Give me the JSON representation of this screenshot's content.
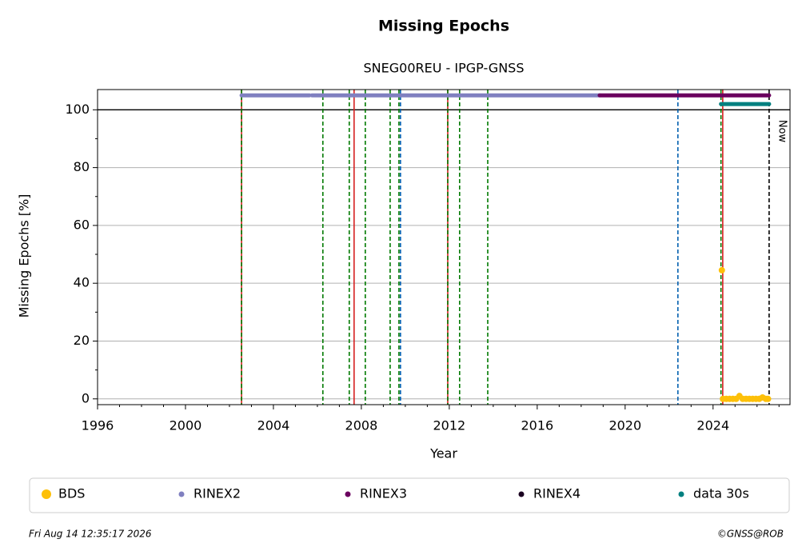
{
  "chart_data": {
    "type": "timeline",
    "title": "Missing Epochs",
    "subtitle": "SNEG00REU - IPGP-GNSS",
    "xlabel": "Year",
    "ylabel": "Missing Epochs [%]",
    "xlim": [
      1996,
      2027.5
    ],
    "ylim": [
      -2,
      107
    ],
    "xticks": [
      1996,
      2000,
      2004,
      2008,
      2012,
      2016,
      2020,
      2024
    ],
    "xminorticks": [
      1997,
      1998,
      1999,
      2001,
      2002,
      2003,
      2005,
      2006,
      2007,
      2009,
      2010,
      2011,
      2013,
      2014,
      2015,
      2017,
      2018,
      2019,
      2021,
      2022,
      2023,
      2025,
      2026,
      2027
    ],
    "yticks": [
      0,
      20,
      40,
      60,
      80,
      100
    ],
    "yminorticks": [
      10,
      30,
      50,
      70,
      90
    ],
    "grid": true,
    "hline": 100,
    "vlines": [
      {
        "x": 2002.55,
        "color": "#d62020",
        "dash": false
      },
      {
        "x": 2007.67,
        "color": "#d62020",
        "dash": false
      },
      {
        "x": 2011.93,
        "color": "#d62020",
        "dash": false
      },
      {
        "x": 2024.44,
        "color": "#d62020",
        "dash": false
      },
      {
        "x": 2002.55,
        "color": "#007a00",
        "dash": true
      },
      {
        "x": 2006.25,
        "color": "#007a00",
        "dash": true
      },
      {
        "x": 2007.45,
        "color": "#007a00",
        "dash": true
      },
      {
        "x": 2008.18,
        "color": "#007a00",
        "dash": true
      },
      {
        "x": 2009.31,
        "color": "#007a00",
        "dash": true
      },
      {
        "x": 2009.71,
        "color": "#007a00",
        "dash": true
      },
      {
        "x": 2011.93,
        "color": "#007a00",
        "dash": true
      },
      {
        "x": 2012.47,
        "color": "#007a00",
        "dash": true
      },
      {
        "x": 2013.75,
        "color": "#007a00",
        "dash": true
      },
      {
        "x": 2024.36,
        "color": "#007a00",
        "dash": true
      },
      {
        "x": 2009.78,
        "color": "#0060b0",
        "dash": true
      },
      {
        "x": 2022.4,
        "color": "#0060b0",
        "dash": true
      },
      {
        "x": 2026.55,
        "color": "#000000",
        "dash": true
      }
    ],
    "annotations": [
      {
        "text": "Now",
        "x": 2026.55
      }
    ],
    "series": [
      {
        "name": "BDS",
        "color": "#fdc009",
        "mode": "markers",
        "x": [
          2024.4,
          2024.45,
          2024.6,
          2024.75,
          2024.9,
          2025.05,
          2025.2,
          2025.35,
          2025.5,
          2025.65,
          2025.8,
          2025.95,
          2026.1,
          2026.25,
          2026.4,
          2026.5
        ],
        "values": [
          44.5,
          0,
          0,
          0,
          0,
          0,
          1,
          0,
          0,
          0,
          0,
          0,
          0,
          0.5,
          0,
          0
        ]
      },
      {
        "name": "RINEX2",
        "color": "#8080c0",
        "mode": "line",
        "x": [
          2002.55,
          2005.64,
          2005.7,
          2005.75,
          2018.84
        ],
        "values": [
          105,
          105,
          null,
          105,
          105
        ]
      },
      {
        "name": "RINEX3",
        "color": "#6b005f",
        "mode": "line",
        "x": [
          2018.84,
          2026.55
        ],
        "values": [
          105,
          105
        ]
      },
      {
        "name": "RINEX4",
        "color": "#1a0020",
        "mode": "line",
        "x": [],
        "values": []
      },
      {
        "name": "data 30s",
        "color": "#008080",
        "mode": "line",
        "x": [
          2024.36,
          2026.55
        ],
        "values": [
          102,
          102
        ]
      }
    ]
  },
  "footer": {
    "timestamp": "Fri Aug 14 12:35:17 2026",
    "credit": "©GNSS@ROB"
  }
}
